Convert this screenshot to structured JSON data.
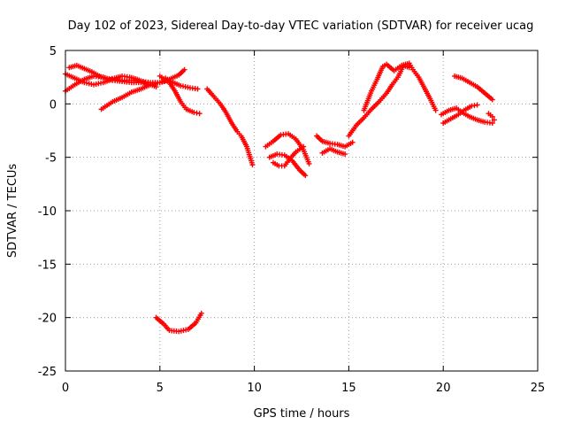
{
  "chart_data": {
    "type": "scatter",
    "title": "Day 102 of 2023, Sidereal Day-to-day VTEC variation (SDTVAR) for receiver ucag",
    "xlabel": "GPS time / hours",
    "ylabel": "SDTVAR / TECUs",
    "xlim": [
      0,
      25
    ],
    "ylim": [
      -25,
      5
    ],
    "xticks": [
      0,
      5,
      10,
      15,
      20,
      25
    ],
    "yticks": [
      5,
      0,
      -5,
      -10,
      -15,
      -20,
      -25
    ],
    "xtick_labels": [
      "0",
      "5",
      "10",
      "15",
      "20",
      "25"
    ],
    "ytick_labels": [
      "5",
      "0",
      "-5",
      "-10",
      "-15",
      "-20",
      "-25"
    ],
    "grid": true,
    "marker": "+",
    "color": "#ff0000",
    "series": [
      {
        "name": "upper-arc-1",
        "points": [
          [
            0.0,
            1.2
          ],
          [
            0.5,
            1.8
          ],
          [
            1.0,
            2.3
          ],
          [
            1.5,
            2.6
          ],
          [
            2.0,
            2.5
          ],
          [
            2.5,
            2.2
          ],
          [
            3.0,
            2.1
          ],
          [
            3.5,
            2.0
          ],
          [
            4.0,
            2.0
          ],
          [
            4.5,
            1.8
          ],
          [
            4.8,
            1.6
          ]
        ]
      },
      {
        "name": "upper-arc-2",
        "points": [
          [
            0.0,
            2.8
          ],
          [
            0.5,
            2.4
          ],
          [
            1.0,
            2.0
          ],
          [
            1.5,
            1.8
          ],
          [
            2.0,
            2.0
          ],
          [
            2.5,
            2.3
          ],
          [
            3.0,
            2.2
          ],
          [
            3.5,
            2.2
          ],
          [
            4.0,
            2.1
          ],
          [
            4.5,
            2.0
          ],
          [
            5.0,
            2.0
          ],
          [
            5.5,
            2.2
          ]
        ]
      },
      {
        "name": "upper-arc-3",
        "points": [
          [
            0.2,
            3.4
          ],
          [
            0.6,
            3.6
          ],
          [
            1.0,
            3.3
          ],
          [
            1.4,
            3.0
          ],
          [
            1.8,
            2.6
          ],
          [
            2.2,
            2.3
          ],
          [
            2.6,
            2.4
          ],
          [
            3.0,
            2.6
          ],
          [
            3.4,
            2.5
          ],
          [
            3.8,
            2.3
          ],
          [
            4.2,
            2.0
          ]
        ]
      },
      {
        "name": "upper-arc-4",
        "points": [
          [
            1.9,
            -0.5
          ],
          [
            2.5,
            0.2
          ],
          [
            3.0,
            0.6
          ],
          [
            3.5,
            1.1
          ],
          [
            4.0,
            1.4
          ],
          [
            4.5,
            1.8
          ],
          [
            5.0,
            2.0
          ],
          [
            5.5,
            2.3
          ],
          [
            6.0,
            2.7
          ],
          [
            6.3,
            3.2
          ]
        ]
      },
      {
        "name": "descent-5-7",
        "points": [
          [
            5.0,
            2.6
          ],
          [
            5.5,
            2.0
          ],
          [
            5.8,
            1.2
          ],
          [
            6.1,
            0.2
          ],
          [
            6.4,
            -0.5
          ],
          [
            6.8,
            -0.8
          ],
          [
            7.1,
            -0.9
          ]
        ]
      },
      {
        "name": "bump-6-7",
        "points": [
          [
            5.3,
            2.4
          ],
          [
            5.7,
            2.0
          ],
          [
            6.1,
            1.7
          ],
          [
            6.6,
            1.5
          ],
          [
            7.0,
            1.4
          ]
        ]
      },
      {
        "name": "decline-7-10",
        "points": [
          [
            7.5,
            1.4
          ],
          [
            7.8,
            0.8
          ],
          [
            8.2,
            0.0
          ],
          [
            8.5,
            -0.8
          ],
          [
            8.8,
            -1.8
          ],
          [
            9.1,
            -2.6
          ],
          [
            9.3,
            -3.0
          ],
          [
            9.6,
            -4.0
          ],
          [
            9.9,
            -5.7
          ]
        ]
      },
      {
        "name": "cluster-11-13-a",
        "points": [
          [
            10.6,
            -4.0
          ],
          [
            11.0,
            -3.5
          ],
          [
            11.4,
            -2.9
          ],
          [
            11.8,
            -2.8
          ],
          [
            12.2,
            -3.3
          ],
          [
            12.6,
            -4.3
          ],
          [
            12.9,
            -5.6
          ]
        ]
      },
      {
        "name": "cluster-11-13-b",
        "points": [
          [
            10.8,
            -5.0
          ],
          [
            11.2,
            -4.7
          ],
          [
            11.6,
            -4.8
          ],
          [
            12.0,
            -5.3
          ],
          [
            12.4,
            -6.2
          ],
          [
            12.7,
            -6.7
          ]
        ]
      },
      {
        "name": "cluster-11-13-c",
        "points": [
          [
            11.0,
            -5.5
          ],
          [
            11.3,
            -5.8
          ],
          [
            11.6,
            -5.8
          ],
          [
            11.9,
            -5.1
          ],
          [
            12.2,
            -4.5
          ],
          [
            12.6,
            -4.0
          ]
        ]
      },
      {
        "name": "valley-13-15",
        "points": [
          [
            13.3,
            -3.0
          ],
          [
            13.6,
            -3.5
          ],
          [
            14.0,
            -3.7
          ],
          [
            14.4,
            -3.8
          ],
          [
            14.8,
            -4.0
          ],
          [
            15.2,
            -3.6
          ]
        ]
      },
      {
        "name": "valley-13-15-b",
        "points": [
          [
            13.6,
            -4.6
          ],
          [
            14.0,
            -4.2
          ],
          [
            14.4,
            -4.5
          ],
          [
            14.8,
            -4.7
          ]
        ]
      },
      {
        "name": "rise-15-18",
        "points": [
          [
            15.0,
            -3.0
          ],
          [
            15.4,
            -2.0
          ],
          [
            15.8,
            -1.3
          ],
          [
            16.2,
            -0.5
          ],
          [
            16.6,
            0.2
          ],
          [
            17.0,
            1.0
          ],
          [
            17.3,
            1.8
          ],
          [
            17.6,
            2.5
          ],
          [
            17.9,
            3.6
          ],
          [
            18.2,
            3.4
          ]
        ]
      },
      {
        "name": "rise-16-18-b",
        "points": [
          [
            15.8,
            -0.6
          ],
          [
            16.2,
            1.2
          ],
          [
            16.5,
            2.3
          ],
          [
            16.8,
            3.5
          ],
          [
            17.0,
            3.7
          ],
          [
            17.4,
            3.1
          ],
          [
            17.8,
            3.6
          ],
          [
            18.2,
            3.8
          ],
          [
            18.4,
            3.2
          ],
          [
            18.7,
            2.5
          ],
          [
            19.0,
            1.5
          ],
          [
            19.3,
            0.5
          ],
          [
            19.6,
            -0.6
          ]
        ]
      },
      {
        "name": "cluster-20-22",
        "points": [
          [
            20.0,
            -1.8
          ],
          [
            20.4,
            -1.4
          ],
          [
            20.8,
            -1.0
          ],
          [
            21.1,
            -0.6
          ],
          [
            21.5,
            -0.2
          ],
          [
            21.8,
            -0.1
          ]
        ]
      },
      {
        "name": "cluster-20-22-b",
        "points": [
          [
            19.9,
            -1.0
          ],
          [
            20.3,
            -0.6
          ],
          [
            20.7,
            -0.4
          ],
          [
            21.0,
            -0.8
          ],
          [
            21.4,
            -1.2
          ],
          [
            21.8,
            -1.5
          ],
          [
            22.2,
            -1.7
          ],
          [
            22.6,
            -1.8
          ]
        ]
      },
      {
        "name": "late-arc",
        "points": [
          [
            20.6,
            2.6
          ],
          [
            21.0,
            2.4
          ],
          [
            21.4,
            2.0
          ],
          [
            21.8,
            1.6
          ],
          [
            22.2,
            1.0
          ],
          [
            22.6,
            0.4
          ]
        ]
      },
      {
        "name": "late-dip",
        "points": [
          [
            22.4,
            -0.9
          ],
          [
            22.6,
            -1.2
          ],
          [
            22.7,
            -1.5
          ]
        ]
      },
      {
        "name": "outlier-low",
        "points": [
          [
            4.8,
            -20.0
          ],
          [
            5.2,
            -20.6
          ],
          [
            5.5,
            -21.2
          ],
          [
            6.0,
            -21.3
          ],
          [
            6.5,
            -21.1
          ],
          [
            6.9,
            -20.5
          ],
          [
            7.2,
            -19.6
          ]
        ]
      }
    ]
  }
}
